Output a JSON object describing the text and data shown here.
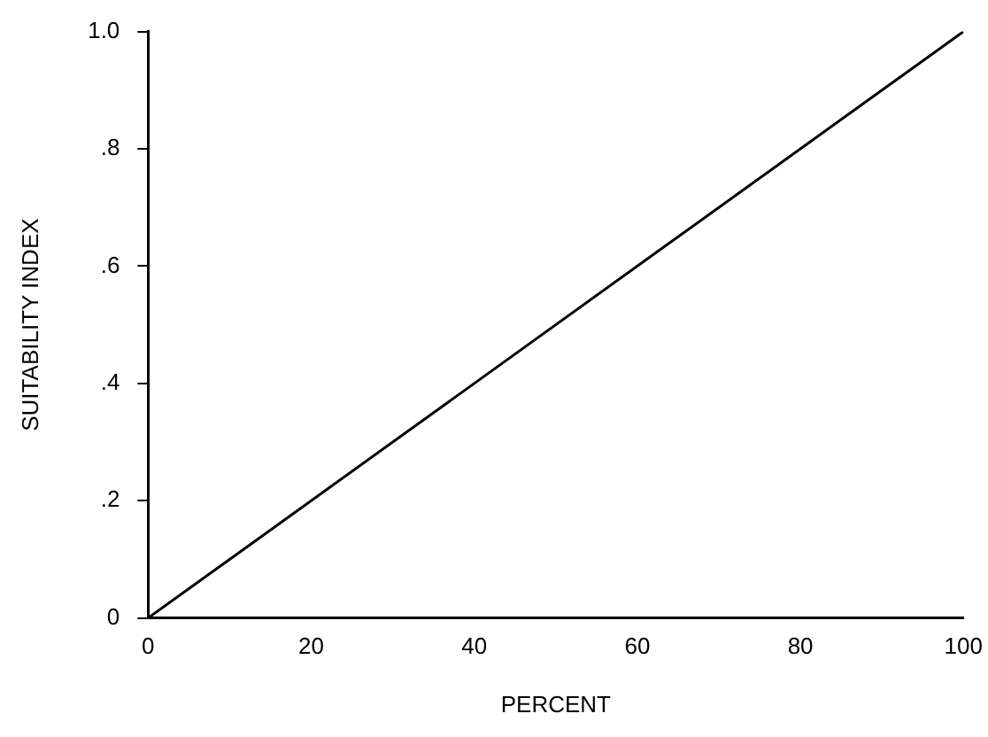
{
  "chart_data": {
    "type": "line",
    "xlabel": "PERCENT",
    "ylabel": "SUITABILITY INDEX",
    "x": [
      0,
      100
    ],
    "series": [
      {
        "color": "#000000",
        "values": [
          0,
          1.0
        ]
      }
    ],
    "xlim": [
      0,
      100
    ],
    "xticks": [
      0,
      20,
      40,
      60,
      80,
      100
    ],
    "ylim": [
      0,
      1.0
    ],
    "yticks": [
      0,
      {
        "value": 0.2,
        "label": ".2"
      },
      {
        "value": 0.4,
        "label": ".4"
      },
      {
        "value": 0.6,
        "label": ".6"
      },
      {
        "value": 0.8,
        "label": ".8"
      },
      {
        "value": 1.0,
        "label": "1.0"
      }
    ],
    "grid": false,
    "legend": false,
    "marker": "none",
    "line_style": "solid"
  }
}
